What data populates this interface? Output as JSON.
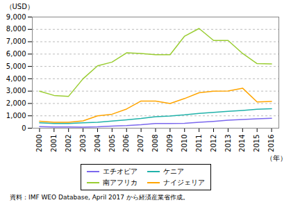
{
  "chart_data": {
    "type": "line",
    "x": [
      2000,
      2001,
      2002,
      2003,
      2004,
      2005,
      2006,
      2007,
      2008,
      2009,
      2010,
      2011,
      2012,
      2013,
      2014,
      2015,
      2016
    ],
    "series": [
      {
        "name": "エチオピア",
        "color": "#7B68EE",
        "values": [
          130,
          100,
          100,
          90,
          110,
          170,
          210,
          280,
          380,
          380,
          400,
          480,
          550,
          640,
          700,
          760,
          800
        ]
      },
      {
        "name": "ケニア",
        "color": "#20B2AA",
        "values": [
          440,
          380,
          380,
          430,
          480,
          570,
          680,
          790,
          930,
          990,
          1080,
          1200,
          1280,
          1370,
          1440,
          1530,
          1570
        ]
      },
      {
        "name": "南アフリカ",
        "color": "#9ACD32",
        "values": [
          3000,
          2650,
          2580,
          4000,
          5050,
          5350,
          6100,
          6050,
          5950,
          5950,
          7450,
          8070,
          7100,
          7100,
          6050,
          5230,
          5200
        ]
      },
      {
        "name": "ナイジェリア",
        "color": "#FFA500",
        "values": [
          560,
          480,
          480,
          590,
          1000,
          1130,
          1550,
          2200,
          2200,
          2000,
          2400,
          2870,
          2990,
          3010,
          3240,
          2120,
          2170
        ]
      }
    ],
    "xlim": [
      1999.5,
      2016.5
    ],
    "xticks": [
      2000,
      2001,
      2002,
      2003,
      2004,
      2005,
      2006,
      2007,
      2008,
      2009,
      2010,
      2011,
      2012,
      2013,
      2014,
      2015,
      2016
    ],
    "ylim": [
      0,
      9000
    ],
    "yticks": [
      0,
      {
        "value": 1000,
        "label": "1,000"
      },
      {
        "value": 2000,
        "label": "2,000"
      },
      {
        "value": 3000,
        "label": "3,000"
      },
      {
        "value": 4000,
        "label": "4,000"
      },
      {
        "value": 5000,
        "label": "5,000"
      },
      {
        "value": 6000,
        "label": "6,000"
      },
      {
        "value": 7000,
        "label": "7,000"
      },
      {
        "value": 8000,
        "label": "8,000"
      },
      {
        "value": 9000,
        "label": "9,000"
      }
    ],
    "ylabel": "（USD）",
    "xlabel": "（年）",
    "annotations": [
      "資料：IMF WEO Database, April 2017 から経済産業省作成。"
    ],
    "grid": true,
    "legend": "bottom"
  }
}
